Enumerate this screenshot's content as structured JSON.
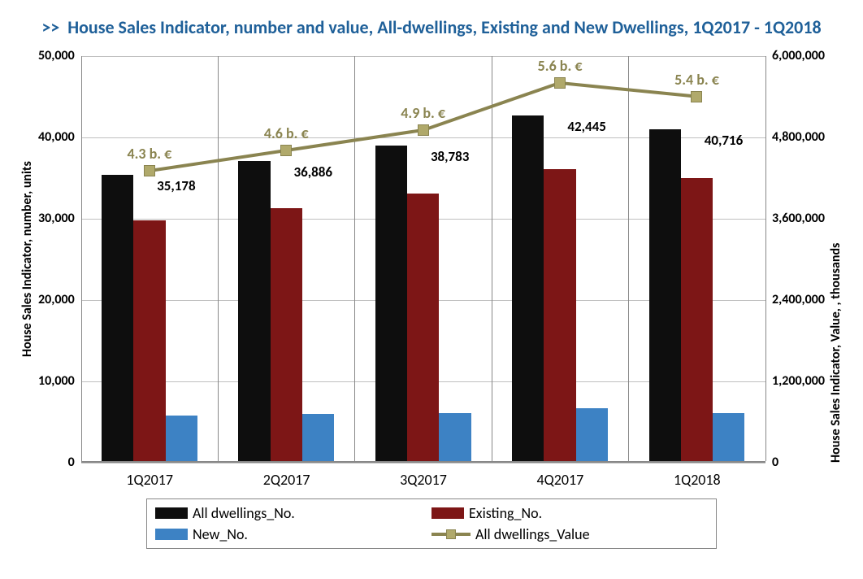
{
  "chart": {
    "type": "bar+line",
    "title_prefix": ">>",
    "title": "House Sales Indicator, number and value, All-dwellings, Existing and New Dwellings, 1Q2017 - 1Q2018",
    "title_color": "#1f6099",
    "title_fontsize": 22,
    "background_color": "#ffffff",
    "grid_color": "#c0c0c0",
    "axis_color": "#888888",
    "categories": [
      "1Q2017",
      "2Q2017",
      "3Q2017",
      "4Q2017",
      "1Q2018"
    ],
    "y_left": {
      "label": "House Sales Indicator, number, units",
      "min": 0,
      "max": 50000,
      "step": 10000,
      "tick_labels": [
        "0",
        "10,000",
        "20,000",
        "30,000",
        "40,000",
        "50,000"
      ],
      "tick_fontsize": 16,
      "label_fontsize": 16
    },
    "y_right": {
      "label": "House Sales Indicator, Value, , thousands",
      "min": 0,
      "max": 6000000,
      "step": 1200000,
      "tick_labels": [
        "0",
        "1,200,000",
        "2,400,000",
        "3,600,000",
        "4,800,000",
        "6,000,000"
      ],
      "tick_fontsize": 16,
      "label_fontsize": 16
    },
    "bar_series": [
      {
        "name": "All dwellings_No.",
        "color": "#0e0e0e",
        "values": [
          35178,
          36886,
          38783,
          42445,
          40716
        ],
        "show_data_labels": true,
        "data_labels": [
          "35,178",
          "36,886",
          "38,783",
          "42,445",
          "40,716"
        ]
      },
      {
        "name": "Existing_No.",
        "color": "#7d1616",
        "values": [
          29600,
          31100,
          32900,
          35900,
          34800
        ],
        "show_data_labels": false
      },
      {
        "name": "New_No.",
        "color": "#3d82c4",
        "values": [
          5600,
          5800,
          5900,
          6500,
          5900
        ],
        "show_data_labels": false
      }
    ],
    "line_series": {
      "name": "All dwellings_Value",
      "color": "#8a8450",
      "marker_color": "#b0a96b",
      "marker_border": "#8a8450",
      "marker_style": "square",
      "marker_size": 14,
      "line_width": 4,
      "values": [
        4300000,
        4600000,
        4900000,
        5600000,
        5400000
      ],
      "data_labels": [
        "4.3 b. €",
        "4.6 b. €",
        "4.9 b. €",
        "5.6 b. €",
        "5.4 b. €"
      ],
      "show_data_labels": true
    },
    "bar_group_width": 0.7,
    "legend": {
      "position": "bottom",
      "border_color": "#888888",
      "fontsize": 18,
      "items": [
        {
          "label": "All dwellings_No.",
          "type": "rect",
          "color": "#0e0e0e"
        },
        {
          "label": "Existing_No.",
          "type": "rect",
          "color": "#7d1616"
        },
        {
          "label": "New_No.",
          "type": "rect",
          "color": "#3d82c4"
        },
        {
          "label": "All dwellings_Value",
          "type": "line",
          "color": "#8a8450",
          "marker_color": "#b0a96b"
        }
      ]
    }
  }
}
